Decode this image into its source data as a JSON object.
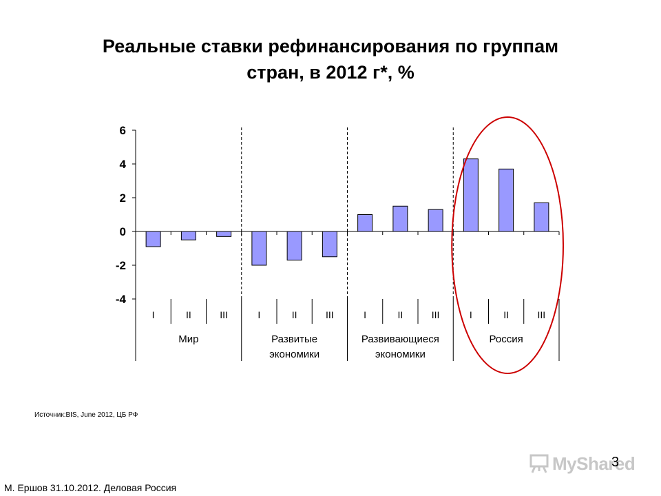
{
  "chart_data": {
    "type": "bar",
    "title": "Реальные ставки рефинансирования по группам стран, в 2012 г*, %",
    "title_lines": [
      "Реальные ставки рефинансирования по группам",
      "стран, в 2012 г*, %"
    ],
    "xlabel": "",
    "ylabel": "",
    "ylim": [
      -4,
      6
    ],
    "yticks": [
      6,
      4,
      2,
      0,
      -2,
      -4
    ],
    "categories": [
      "I",
      "II",
      "III",
      "I",
      "II",
      "III",
      "I",
      "II",
      "III",
      "I",
      "II",
      "III"
    ],
    "groups": [
      {
        "lines": [
          "Мир"
        ],
        "count": 3
      },
      {
        "lines": [
          "Развитые",
          "экономики"
        ],
        "count": 3
      },
      {
        "lines": [
          "Развивающиеся",
          "экономики"
        ],
        "count": 3
      },
      {
        "lines": [
          "Россия"
        ],
        "count": 3
      }
    ],
    "values": [
      -0.9,
      -0.5,
      -0.3,
      -2.0,
      -1.7,
      -1.5,
      1.0,
      1.5,
      1.3,
      4.3,
      3.7,
      1.7
    ],
    "highlighted_group": "Россия",
    "bar_color": "#9999ff",
    "highlight_color": "#cc0000",
    "grid": false,
    "legend": "none"
  },
  "source": "Источник:BIS, June 2012, ЦБ РФ",
  "page_number": "3",
  "footer": "М. Ершов 31.10.2012. Деловая Россия",
  "logo": {
    "text": "MyShared",
    "icon": "presentation-board-icon"
  }
}
